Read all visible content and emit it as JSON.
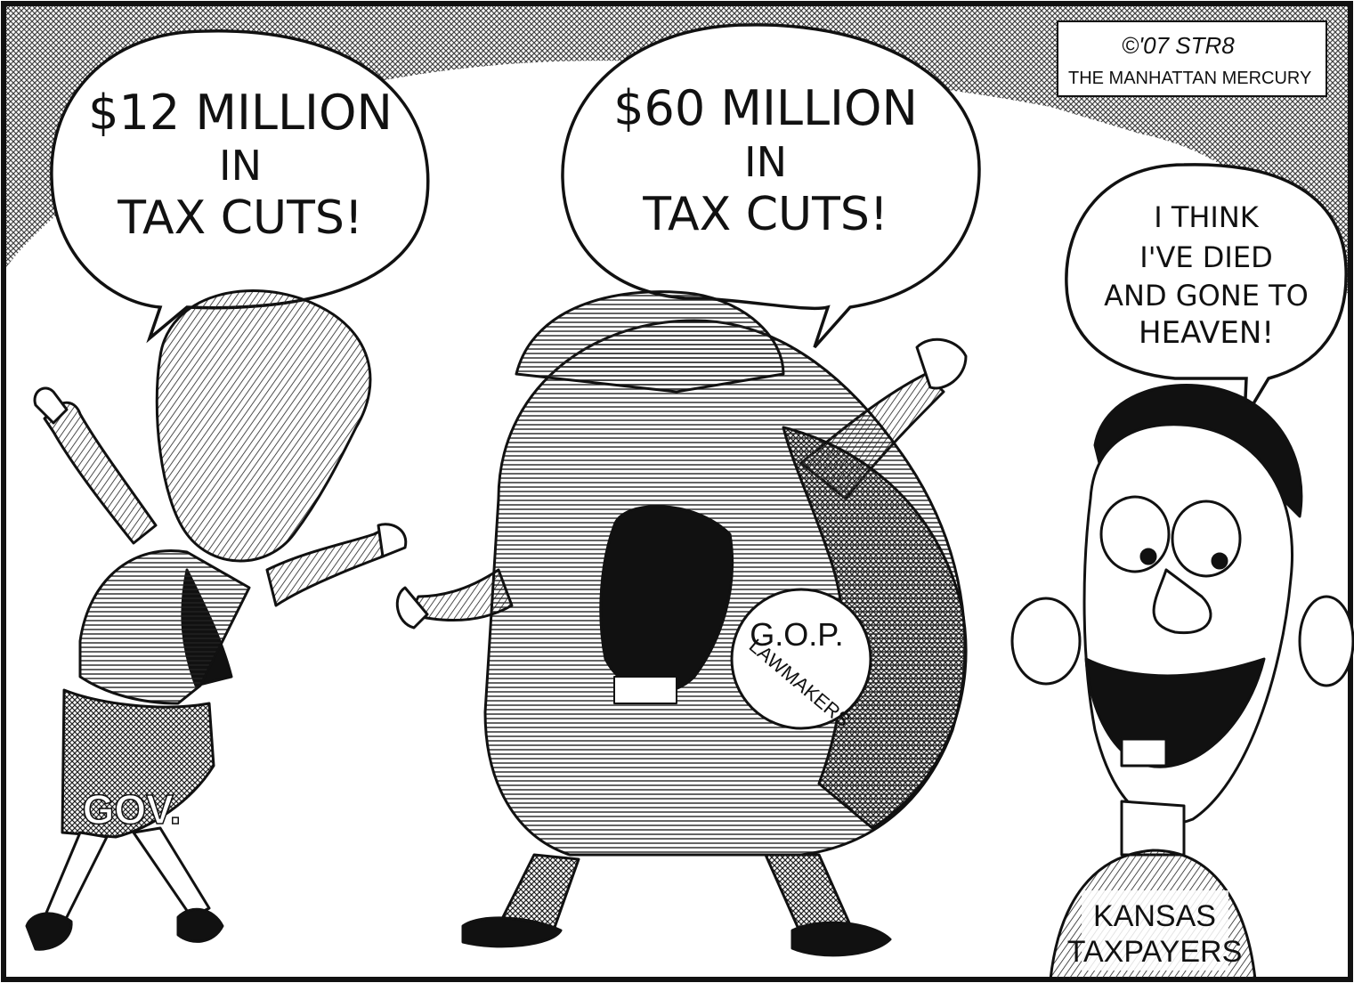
{
  "credit": {
    "signature": "©'07 STR8",
    "publication": "THE MANHATTAN MERCURY"
  },
  "bubbles": [
    {
      "lines": [
        "$12 MILLION",
        "IN",
        "TAX CUTS!"
      ]
    },
    {
      "lines": [
        "$60 MILLION",
        "IN",
        "TAX CUTS!"
      ]
    },
    {
      "lines": [
        "I THINK",
        "I'VE DIED",
        "AND GONE TO",
        "HEAVEN!"
      ]
    }
  ],
  "labels": {
    "governor_skirt": "GOV.",
    "badge_line1": "G.O.P.",
    "badge_line2": "LAWMAKERS",
    "shirt_line1": "KANSAS",
    "shirt_line2": "TAXPAYERS"
  },
  "colors": {
    "ink": "#111111",
    "paper": "#ffffff",
    "shade": "#555555"
  }
}
